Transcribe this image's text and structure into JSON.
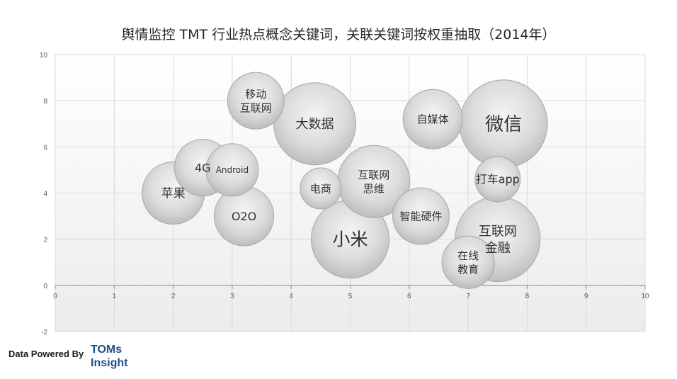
{
  "chart_data": {
    "type": "bubble",
    "title": "舆情监控 TMT 行业热点概念关键词，关联关键词按权重抽取（2014年）",
    "xlim": [
      0,
      10
    ],
    "ylim": [
      -2,
      10
    ],
    "x_ticks": [
      0,
      1,
      2,
      3,
      4,
      5,
      6,
      7,
      8,
      9,
      10
    ],
    "y_ticks": [
      -2,
      0,
      2,
      4,
      6,
      8,
      10
    ],
    "grid": true,
    "points": [
      {
        "label": "移动\n互联网",
        "x": 3.4,
        "y": 8.0,
        "size": 40,
        "font": 15
      },
      {
        "label": "大数据",
        "x": 4.4,
        "y": 7.0,
        "size": 58,
        "font": 18
      },
      {
        "label": "自媒体",
        "x": 6.4,
        "y": 7.2,
        "size": 42,
        "font": 15
      },
      {
        "label": "微信",
        "x": 7.6,
        "y": 7.0,
        "size": 62,
        "font": 26
      },
      {
        "label": "4G",
        "x": 2.5,
        "y": 5.1,
        "size": 40,
        "font": 16
      },
      {
        "label": "Android",
        "x": 3.0,
        "y": 5.0,
        "size": 37,
        "font": 12
      },
      {
        "label": "苹果",
        "x": 2.0,
        "y": 4.0,
        "size": 44,
        "font": 17
      },
      {
        "label": "电商",
        "x": 4.5,
        "y": 4.2,
        "size": 29,
        "font": 15
      },
      {
        "label": "互联网\n思维",
        "x": 5.4,
        "y": 4.5,
        "size": 51,
        "font": 15
      },
      {
        "label": "打车app",
        "x": 7.5,
        "y": 4.6,
        "size": 32,
        "font": 16
      },
      {
        "label": "O2O",
        "x": 3.2,
        "y": 3.0,
        "size": 42,
        "font": 16
      },
      {
        "label": "智能硬件",
        "x": 6.2,
        "y": 3.0,
        "size": 40,
        "font": 15
      },
      {
        "label": "小米",
        "x": 5.0,
        "y": 2.0,
        "size": 55,
        "font": 25
      },
      {
        "label": "互联网\n金融",
        "x": 7.5,
        "y": 2.0,
        "size": 60,
        "font": 18
      },
      {
        "label": "在线\n教育",
        "x": 7.0,
        "y": 1.0,
        "size": 37,
        "font": 15
      }
    ]
  },
  "footer": {
    "text": "Data Powered By",
    "brand_line1": "TOMs",
    "brand_line2": "Insight"
  }
}
